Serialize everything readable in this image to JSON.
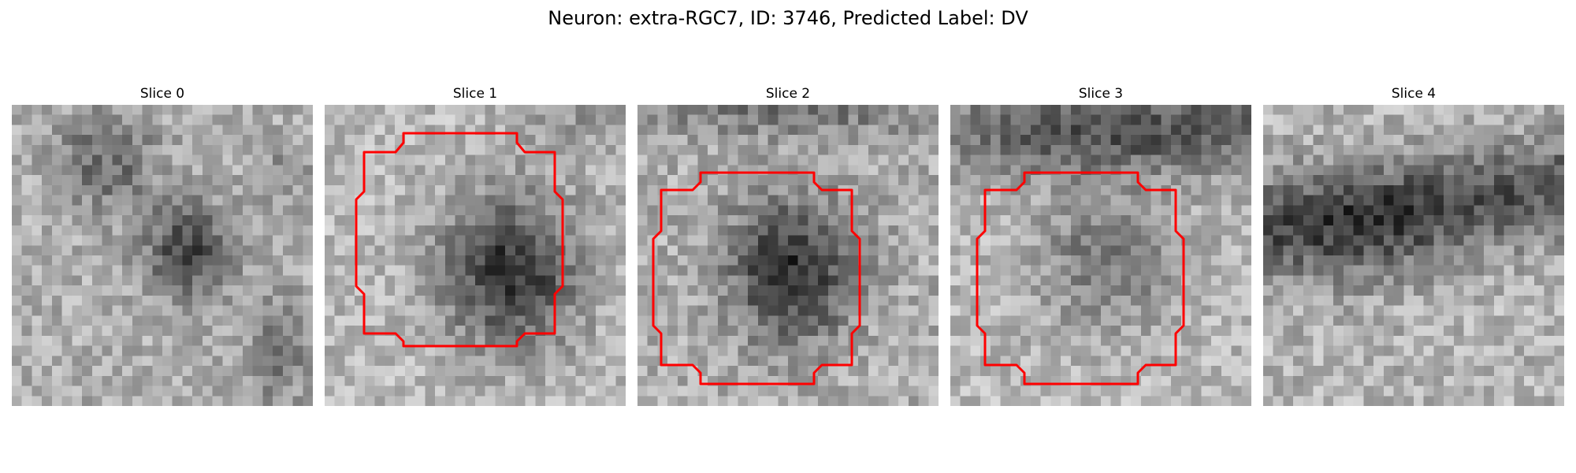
{
  "figure": {
    "title": "Neuron: extra-RGC7, ID: 3746, Predicted Label: DV"
  },
  "panels": [
    {
      "title": "Slice 0",
      "has_roi": false,
      "pattern": "two-blobs"
    },
    {
      "title": "Slice 1",
      "has_roi": true,
      "pattern": "dark-center"
    },
    {
      "title": "Slice 2",
      "has_roi": true,
      "pattern": "dark-center-light-ring"
    },
    {
      "title": "Slice 3",
      "has_roi": true,
      "pattern": "grey-center-dark-top"
    },
    {
      "title": "Slice 4",
      "has_roi": false,
      "pattern": "dark-band"
    }
  ],
  "colors": {
    "roi_outline": "#ff0000",
    "background": "#ffffff",
    "colormap": "grayscale"
  }
}
